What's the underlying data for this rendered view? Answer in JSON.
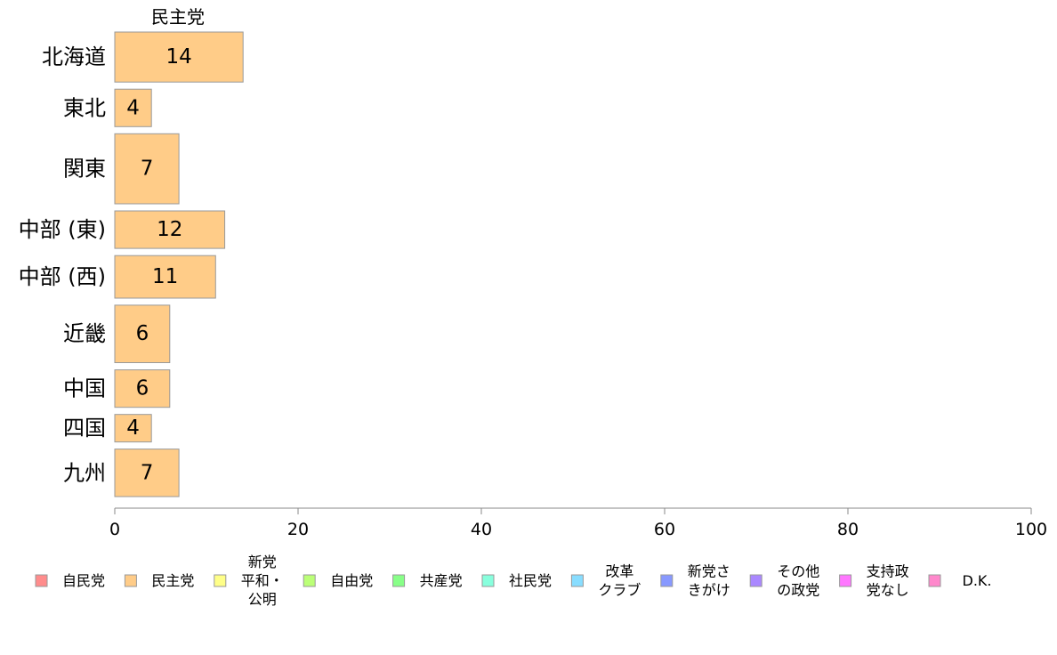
{
  "chart_data": {
    "type": "bar",
    "orientation": "horizontal",
    "series_title": "民主党",
    "categories": [
      "北海道",
      "東北",
      "関東",
      "中部 (東)",
      "中部 (西)",
      "近畿",
      "中国",
      "四国",
      "九州"
    ],
    "values": [
      14,
      4,
      7,
      12,
      11,
      6,
      6,
      4,
      7
    ],
    "bar_weights": [
      1.0,
      0.75,
      1.4,
      0.75,
      0.85,
      1.15,
      0.75,
      0.55,
      0.95
    ],
    "xlim": [
      0,
      100
    ],
    "xticks": [
      0,
      20,
      40,
      60,
      80,
      100
    ],
    "xlabel": "",
    "ylabel": "",
    "grid": false,
    "legend_position": "bottom",
    "bar_color": "#FFCC88",
    "bar_border_color": "#999999",
    "legend": [
      {
        "label": "自民党",
        "color": "#FF8C8C"
      },
      {
        "label": "民主党",
        "color": "#FFCC88"
      },
      {
        "label": "新党\n平和・\n公明",
        "color": "#FFFF88"
      },
      {
        "label": "自由党",
        "color": "#BBFF77"
      },
      {
        "label": "共産党",
        "color": "#88FF88"
      },
      {
        "label": "社民党",
        "color": "#88FFDD"
      },
      {
        "label": "改革\nクラブ",
        "color": "#88DDFF"
      },
      {
        "label": "新党さ\nきがけ",
        "color": "#8899FF"
      },
      {
        "label": "その他\nの政党",
        "color": "#AA88FF"
      },
      {
        "label": "支持政\n党なし",
        "color": "#FF77FF"
      },
      {
        "label": "D.K.",
        "color": "#FF88CC"
      }
    ]
  }
}
